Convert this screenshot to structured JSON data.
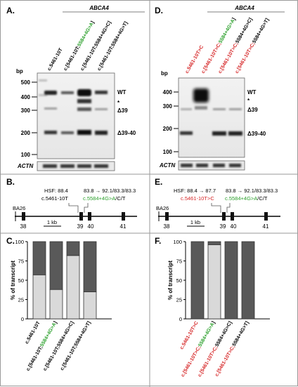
{
  "panels": {
    "A": {
      "label": "A.",
      "gene": "ABCA4",
      "lanes": [
        {
          "name": "c.5461-10T",
          "green": "",
          "green2": "",
          "tail": ""
        },
        {
          "name": "c.[5461-10T;",
          "green": "5584+4G>A",
          "green2": "",
          "tail": "]"
        },
        {
          "name": "c.[5461-10T;5584+4G>C]",
          "green": "",
          "green2": "",
          "tail": ""
        },
        {
          "name": "c.[5461-10T;5584+4G>T]",
          "green": "",
          "green2": "",
          "tail": ""
        }
      ],
      "bp_label": "bp",
      "bp_ticks": [
        "500",
        "400",
        "300",
        "200",
        "100"
      ],
      "band_labels": {
        "wt": "WT",
        "star": "*",
        "d39": "Δ39",
        "d3940": "Δ39-40"
      },
      "actn": "ACTN"
    },
    "D": {
      "label": "D.",
      "gene": "ABCA4",
      "lanes": [
        {
          "red": "c.5461-10T>C",
          "green": "",
          "tail": ""
        },
        {
          "red": "c.[5461-10T>C;",
          "green": "5584+4G>A",
          "tail": "]"
        },
        {
          "red": "c.[5461-10T>C;",
          "green": "",
          "tail": "5584+4G>C]"
        },
        {
          "red": "c.[5461-10T>C;",
          "green": "",
          "tail": "5584+4G>T]"
        }
      ],
      "bp_label": "bp",
      "bp_ticks": [
        "400",
        "300",
        "200",
        "100"
      ],
      "band_labels": {
        "wt": "WT",
        "star": "*",
        "d39": "Δ39",
        "d3940": "Δ39-40"
      },
      "actn": "ACTN"
    },
    "B": {
      "label": "B.",
      "hsf": "HSF: 88.4",
      "var1": "c.5461-10T",
      "score": "83.8 → 92.1/83.3/83.3",
      "var2_green": "c.5584+4G>A",
      "var2_tail": "/C/T",
      "exons": [
        "38",
        "39",
        "40",
        "41"
      ],
      "ba26": "BA26",
      "scale": "1 kb"
    },
    "E": {
      "label": "E.",
      "hsf": "HSF: 88.4 → 87.7",
      "var1_red": "c.5461-10T>C",
      "score": "83.8 → 92.1/83.3/83.3",
      "var2_green": "c.5584+4G>A",
      "var2_tail": "/C/T",
      "exons": [
        "38",
        "39",
        "40",
        "41"
      ],
      "ba26": "BA26",
      "scale": "1 kb"
    },
    "C": {
      "label": "C.",
      "ylabel": "% of transcript"
    },
    "F": {
      "label": "F.",
      "ylabel": "% of transcript"
    }
  },
  "chart_data": [
    {
      "type": "bar",
      "stacked": true,
      "panel": "C",
      "ylabel": "% of transcript",
      "ylim": [
        0,
        100
      ],
      "yticks": [
        0,
        25,
        50,
        75,
        100
      ],
      "categories": [
        "c.5461-10T",
        "c.[5461-10T;5584+4G>A]",
        "c.[5461-10T;5584+4G>C]",
        "c.[5461-10T;5584+4G>T]"
      ],
      "series": [
        {
          "color": "#d9d9d9",
          "values": [
            57,
            38,
            82,
            35
          ]
        },
        {
          "color": "#595959",
          "values": [
            43,
            62,
            18,
            65
          ]
        }
      ]
    },
    {
      "type": "bar",
      "stacked": true,
      "panel": "F",
      "ylabel": "% of transcript",
      "ylim": [
        0,
        100
      ],
      "yticks": [
        0,
        25,
        50,
        75,
        100
      ],
      "categories": [
        "c.5461-10T>C",
        "c.[5461-10T>C;5584+4G>A]",
        "c.[5461-10T>C;5584+4G>C]",
        "c.[5461-10T>C;5584+4G>T]"
      ],
      "series": [
        {
          "color": "#d9d9d9",
          "values": [
            0,
            96,
            0,
            0
          ]
        },
        {
          "color": "#595959",
          "values": [
            100,
            4,
            100,
            100
          ]
        }
      ]
    }
  ],
  "colors": {
    "green": "#2ca02c",
    "red": "#d62728",
    "dark": "#595959",
    "light": "#d9d9d9"
  }
}
